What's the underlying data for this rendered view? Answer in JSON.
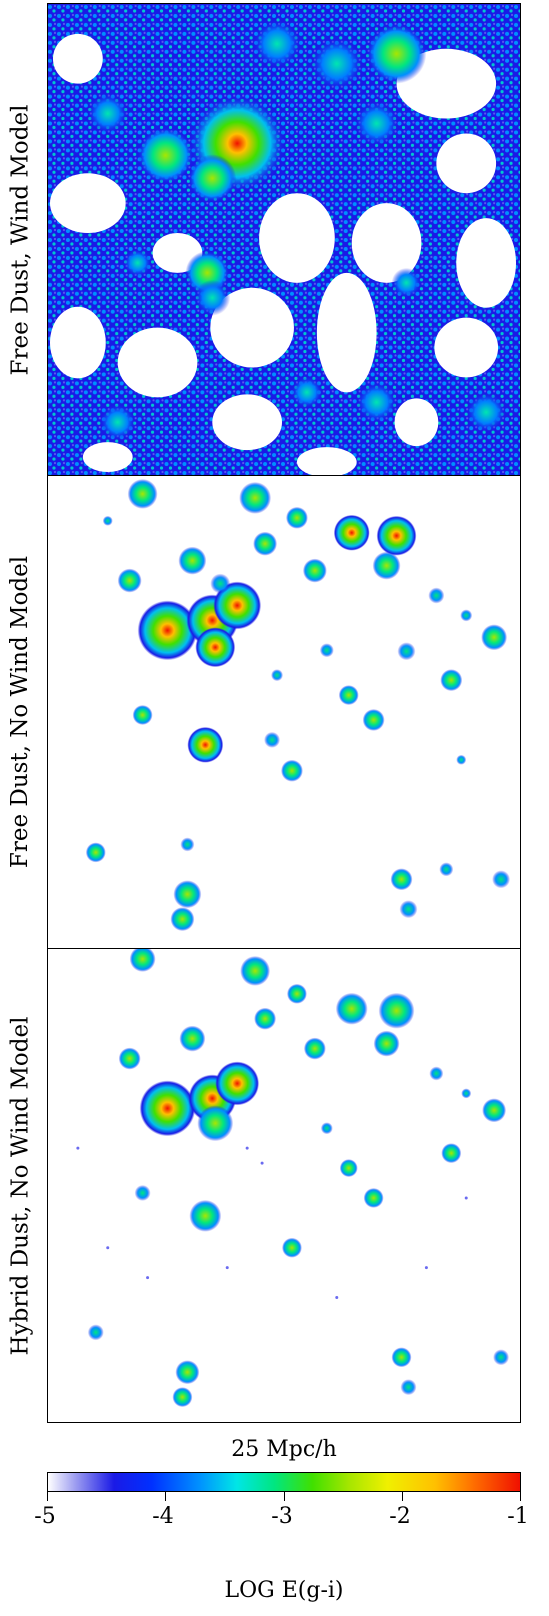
{
  "panels": [
    {
      "label": "Free Dust, Wind Model"
    },
    {
      "label": "Free Dust, No Wind Model"
    },
    {
      "label": "Hybrid Dust, No Wind Model"
    }
  ],
  "scale_bar_label": "25 Mpc/h",
  "colorbar": {
    "ticks": [
      "-5",
      "-4",
      "-3",
      "-2",
      "-1"
    ],
    "label": "LOG E(g-i)",
    "range": [
      -5,
      -1
    ],
    "colormap": [
      "#ffffff",
      "#1a1ae6",
      "#0090ff",
      "#00e680",
      "#f0f000",
      "#ff7000",
      "#f01000"
    ]
  }
}
